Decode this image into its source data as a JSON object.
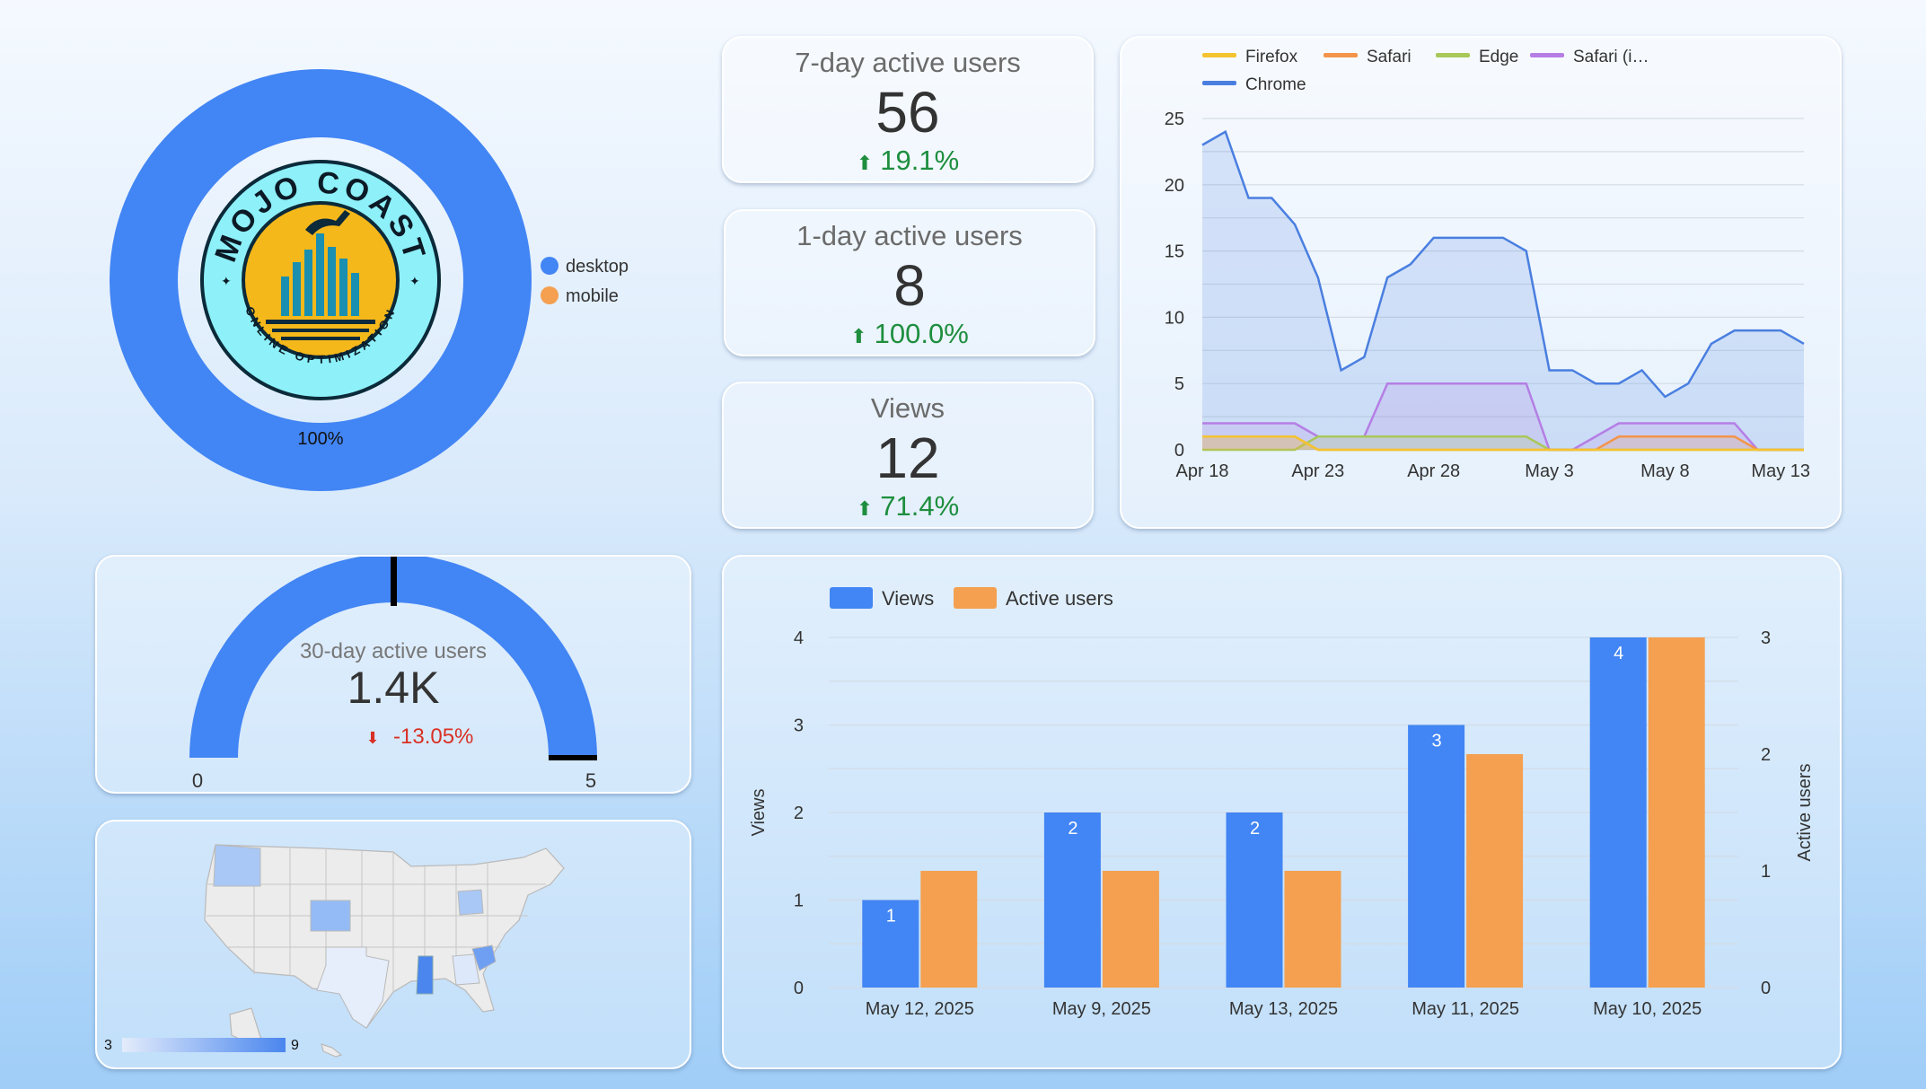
{
  "device_donut": {
    "segments": [
      {
        "name": "desktop",
        "value": 100,
        "color": "#4285f4"
      },
      {
        "name": "mobile",
        "value": 0,
        "color": "#f4a050"
      }
    ],
    "center_label": "100%",
    "logo_text_top": "MOJO COAST",
    "logo_text_bottom": "ONLINE OPTIMIZATION"
  },
  "kpis": [
    {
      "label": "7-day active users",
      "value": "56",
      "delta": "19.1%",
      "direction": "up"
    },
    {
      "label": "1-day active users",
      "value": "8",
      "delta": "100.0%",
      "direction": "up"
    },
    {
      "label": "Views",
      "value": "12",
      "delta": "71.4%",
      "direction": "up"
    }
  ],
  "gauge": {
    "label": "30-day active users",
    "value": "1.4K",
    "delta": "-13.05%",
    "direction": "down",
    "min_label": "0",
    "max_label": "5",
    "fill_fraction": 1.0
  },
  "map": {
    "legend_min": "3",
    "legend_max": "9"
  },
  "browser_chart": {
    "chart_data": {
      "type": "area",
      "x_tick_labels": [
        "Apr 18",
        "Apr 23",
        "Apr 28",
        "May 3",
        "May 8",
        "May 13"
      ],
      "x_start": "Apr 18",
      "x_end": "May 14",
      "ylim": [
        0,
        25
      ],
      "y_ticks": [
        "0",
        "5",
        "10",
        "15",
        "20",
        "25"
      ],
      "legend_position": "top",
      "series": [
        {
          "name": "Firefox",
          "color": "#f4c430",
          "values": [
            1,
            1,
            1,
            1,
            1,
            0,
            0,
            0,
            0,
            0,
            0,
            0,
            0,
            0,
            0,
            0,
            0,
            0,
            0,
            0,
            0,
            0,
            0,
            0,
            0,
            0,
            0
          ]
        },
        {
          "name": "Safari",
          "color": "#f4944a",
          "values": [
            1,
            1,
            1,
            1,
            1,
            0,
            0,
            0,
            0,
            0,
            0,
            0,
            0,
            0,
            0,
            0,
            0,
            0,
            1,
            1,
            1,
            1,
            1,
            1,
            0,
            0,
            0
          ]
        },
        {
          "name": "Edge",
          "color": "#a8c85a",
          "values": [
            0,
            0,
            0,
            0,
            0,
            1,
            1,
            1,
            1,
            1,
            1,
            1,
            1,
            1,
            1,
            0,
            0,
            0,
            0,
            0,
            0,
            0,
            0,
            0,
            0,
            0,
            0
          ]
        },
        {
          "name": "Safari (i…",
          "color": "#b57ee5",
          "values": [
            2,
            2,
            2,
            2,
            2,
            1,
            1,
            1,
            5,
            5,
            5,
            5,
            5,
            5,
            5,
            0,
            0,
            1,
            2,
            2,
            2,
            2,
            2,
            2,
            0,
            0,
            0
          ]
        },
        {
          "name": "Chrome",
          "color": "#4a7fe0",
          "values": [
            23,
            24,
            19,
            19,
            17,
            13,
            6,
            7,
            13,
            14,
            16,
            16,
            16,
            16,
            15,
            6,
            6,
            5,
            5,
            6,
            4,
            5,
            8,
            9,
            9,
            9,
            8
          ]
        }
      ]
    }
  },
  "views_chart": {
    "chart_data": {
      "type": "bar",
      "categories": [
        "May 12, 2025",
        "May 9, 2025",
        "May 13, 2025",
        "May 11, 2025",
        "May 10, 2025"
      ],
      "series": [
        {
          "name": "Views",
          "color": "#4285f4",
          "axis": "left",
          "values": [
            1,
            2,
            2,
            3,
            4
          ],
          "data_labels": true
        },
        {
          "name": "Active users",
          "color": "#f4a050",
          "axis": "right",
          "values": [
            1,
            1,
            1,
            2,
            3
          ],
          "data_labels": false
        }
      ],
      "ylabel": "Views",
      "y2label": "Active users",
      "ylim": [
        0,
        4
      ],
      "y2lim": [
        0,
        3
      ],
      "y_ticks": [
        "0",
        "1",
        "2",
        "3",
        "4"
      ],
      "y2_ticks": [
        "0",
        "1",
        "2",
        "3"
      ],
      "legend_position": "top-left"
    }
  }
}
